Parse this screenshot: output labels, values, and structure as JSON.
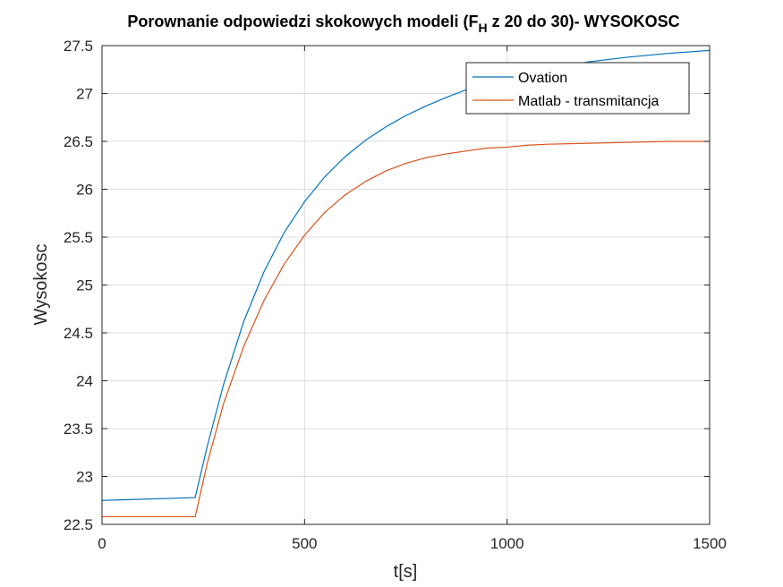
{
  "chart_data": {
    "type": "line",
    "title": {
      "before": "Porownanie odpowiedzi skokowych modeli (F",
      "subscript": "H",
      "after": " z 20 do 30)- WYSOKOSC"
    },
    "xlabel": "t[s]",
    "ylabel": "Wysokosc",
    "xlim": [
      0,
      1500
    ],
    "ylim": [
      22.5,
      27.5
    ],
    "xticks": [
      "0",
      "500",
      "1000",
      "1500"
    ],
    "yticks": [
      "22.5",
      "23",
      "23.5",
      "24",
      "24.5",
      "25",
      "25.5",
      "26",
      "26.5",
      "27",
      "27.5"
    ],
    "grid": true,
    "legend_position": "top-right",
    "series": [
      {
        "name": "Ovation",
        "color": "#0072BD",
        "x": [
          0,
          230,
          260,
          300,
          350,
          400,
          450,
          500,
          550,
          600,
          650,
          700,
          750,
          800,
          850,
          900,
          950,
          1000,
          1050,
          1100,
          1200,
          1300,
          1400,
          1500
        ],
        "y": [
          22.75,
          22.78,
          23.32,
          23.96,
          24.62,
          25.14,
          25.55,
          25.87,
          26.13,
          26.34,
          26.51,
          26.65,
          26.77,
          26.87,
          26.96,
          27.04,
          27.11,
          27.17,
          27.22,
          27.26,
          27.33,
          27.38,
          27.42,
          27.45
        ]
      },
      {
        "name": "Matlab - transmitancja",
        "color": "#D95319",
        "x": [
          0,
          230,
          260,
          300,
          350,
          400,
          450,
          500,
          550,
          600,
          650,
          700,
          750,
          800,
          850,
          900,
          950,
          1000,
          1050,
          1100,
          1200,
          1300,
          1400,
          1500
        ],
        "y": [
          22.58,
          22.58,
          23.14,
          23.76,
          24.36,
          24.84,
          25.22,
          25.52,
          25.76,
          25.94,
          26.08,
          26.19,
          26.27,
          26.33,
          26.37,
          26.4,
          26.43,
          26.44,
          26.46,
          26.47,
          26.48,
          26.49,
          26.5,
          26.5
        ]
      }
    ]
  }
}
